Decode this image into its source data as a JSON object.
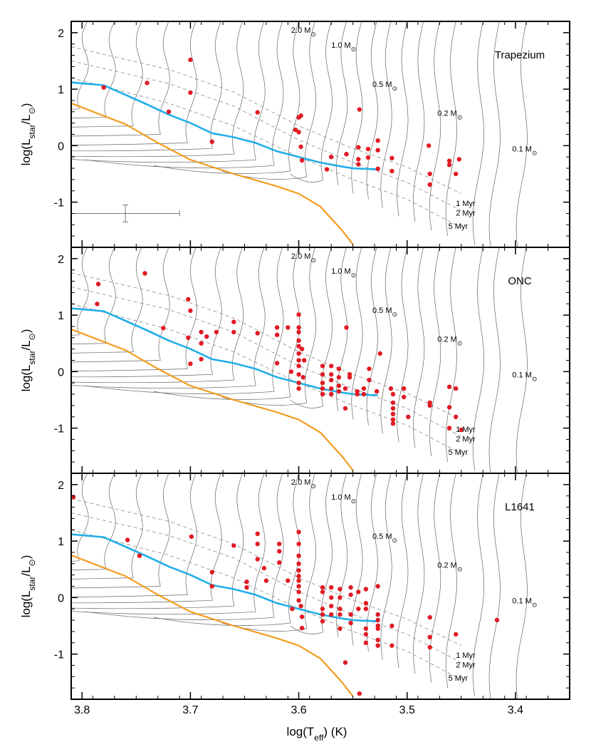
{
  "figure": {
    "xlabel": "log(T",
    "xlabel_sub": "eff",
    "xlabel_end": ") (K)",
    "ylabel_main": "log(L",
    "ylabel_sub1": "star",
    "ylabel_mid": "/L",
    "ylabel_end": ")"
  },
  "colors": {
    "birthline": "#22aee8",
    "zams": "#f39c1e",
    "stars": "#e01b24",
    "tracks": "#666666",
    "isochrones": "#888888",
    "axis": "#000000"
  },
  "axes": {
    "xlim": [
      3.81,
      3.35
    ],
    "ylim": [
      -1.8,
      2.2
    ],
    "xticks": [
      3.8,
      3.7,
      3.6,
      3.5,
      3.4
    ],
    "xtick_labels": [
      "3.8",
      "3.7",
      "3.6",
      "3.5",
      "3.4"
    ],
    "yticks": [
      2,
      1,
      0,
      -1
    ],
    "ytick_labels": [
      "2",
      "1",
      "0",
      "-1"
    ],
    "x_reversed": true
  },
  "track_labels": [
    {
      "text": "2.0 M",
      "x": 3.607,
      "y": 2.0
    },
    {
      "text": "1.0 M",
      "x": 3.57,
      "y": 1.73
    },
    {
      "text": "0.5 M",
      "x": 3.532,
      "y": 1.04
    },
    {
      "text": "0.2 M",
      "x": 3.472,
      "y": 0.53
    },
    {
      "text": "0.1 M",
      "x": 3.403,
      "y": -0.1
    }
  ],
  "isochrone_labels": [
    {
      "text": "1 Myr",
      "x": 3.455,
      "y": -1.07
    },
    {
      "text": "2 Myr",
      "x": 3.455,
      "y": -1.24
    },
    {
      "text": "5 Myr",
      "x": 3.462,
      "y": -1.47
    }
  ],
  "chart_data": [
    {
      "type": "scatter",
      "title": "Trapezium",
      "series": [
        {
          "name": "stars",
          "points": [
            [
              3.78,
              1.03
            ],
            [
              3.74,
              1.11
            ],
            [
              3.7,
              1.52
            ],
            [
              3.7,
              0.94
            ],
            [
              3.72,
              0.6
            ],
            [
              3.68,
              0.07
            ],
            [
              3.638,
              0.59
            ],
            [
              3.603,
              0.28
            ],
            [
              3.6,
              0.5
            ],
            [
              3.598,
              0.53
            ],
            [
              3.6,
              0.24
            ],
            [
              3.598,
              -0.02
            ],
            [
              3.597,
              -0.26
            ],
            [
              3.57,
              -0.2
            ],
            [
              3.556,
              -0.15
            ],
            [
              3.574,
              -0.42
            ],
            [
              3.544,
              0.64
            ],
            [
              3.545,
              -0.03
            ],
            [
              3.545,
              -0.24
            ],
            [
              3.545,
              -0.33
            ],
            [
              3.536,
              -0.06
            ],
            [
              3.536,
              -0.21
            ],
            [
              3.527,
              0.09
            ],
            [
              3.527,
              -0.08
            ],
            [
              3.527,
              -0.41
            ],
            [
              3.514,
              -0.22
            ],
            [
              3.514,
              -0.45
            ],
            [
              3.48,
              0.0
            ],
            [
              3.479,
              -0.5
            ],
            [
              3.479,
              -0.69
            ],
            [
              3.461,
              -0.27
            ],
            [
              3.461,
              -0.34
            ],
            [
              3.452,
              -0.24
            ],
            [
              3.455,
              -0.5
            ]
          ]
        }
      ],
      "error_bar": {
        "x": 3.76,
        "y": -1.2,
        "xerr": 0.05,
        "yerr": 0.15
      }
    },
    {
      "type": "scatter",
      "title": "ONC",
      "series": [
        {
          "name": "stars",
          "points": [
            [
              3.785,
              1.55
            ],
            [
              3.742,
              1.74
            ],
            [
              3.786,
              1.2
            ],
            [
              3.702,
              1.28
            ],
            [
              3.7,
              1.08
            ],
            [
              3.725,
              0.77
            ],
            [
              3.702,
              0.6
            ],
            [
              3.7,
              0.14
            ],
            [
              3.69,
              0.7
            ],
            [
              3.69,
              0.5
            ],
            [
              3.69,
              0.22
            ],
            [
              3.685,
              0.62
            ],
            [
              3.676,
              0.7
            ],
            [
              3.66,
              0.88
            ],
            [
              3.66,
              0.7
            ],
            [
              3.638,
              0.68
            ],
            [
              3.62,
              0.78
            ],
            [
              3.61,
              0.78
            ],
            [
              3.62,
              0.65
            ],
            [
              3.62,
              0.15
            ],
            [
              3.607,
              0.0
            ],
            [
              3.6,
              1.01
            ],
            [
              3.6,
              0.78
            ],
            [
              3.6,
              0.7
            ],
            [
              3.6,
              0.55
            ],
            [
              3.6,
              0.45
            ],
            [
              3.6,
              0.32
            ],
            [
              3.6,
              0.2
            ],
            [
              3.6,
              0.1
            ],
            [
              3.6,
              -0.05
            ],
            [
              3.6,
              -0.2
            ],
            [
              3.6,
              -0.3
            ],
            [
              3.597,
              0.4
            ],
            [
              3.595,
              0.2
            ],
            [
              3.596,
              -0.1
            ],
            [
              3.578,
              0.1
            ],
            [
              3.578,
              -0.05
            ],
            [
              3.578,
              -0.2
            ],
            [
              3.578,
              -0.3
            ],
            [
              3.578,
              -0.4
            ],
            [
              3.57,
              0.1
            ],
            [
              3.57,
              -0.05
            ],
            [
              3.57,
              -0.15
            ],
            [
              3.57,
              -0.3
            ],
            [
              3.57,
              -0.4
            ],
            [
              3.563,
              0.05
            ],
            [
              3.563,
              -0.1
            ],
            [
              3.563,
              -0.25
            ],
            [
              3.563,
              -0.35
            ],
            [
              3.557,
              -0.3
            ],
            [
              3.557,
              -0.65
            ],
            [
              3.556,
              0.78
            ],
            [
              3.553,
              -0.05
            ],
            [
              3.553,
              -0.1
            ],
            [
              3.546,
              -0.35
            ],
            [
              3.546,
              -0.4
            ],
            [
              3.54,
              -0.3
            ],
            [
              3.54,
              -0.4
            ],
            [
              3.535,
              0.05
            ],
            [
              3.535,
              -0.15
            ],
            [
              3.525,
              0.32
            ],
            [
              3.528,
              -0.35
            ],
            [
              3.515,
              -0.3
            ],
            [
              3.513,
              -0.4
            ],
            [
              3.513,
              -0.55
            ],
            [
              3.513,
              -0.65
            ],
            [
              3.513,
              -0.75
            ],
            [
              3.513,
              -0.85
            ],
            [
              3.513,
              -0.92
            ],
            [
              3.503,
              -0.3
            ],
            [
              3.503,
              -0.45
            ],
            [
              3.499,
              -0.8
            ],
            [
              3.479,
              -0.55
            ],
            [
              3.479,
              -0.6
            ],
            [
              3.461,
              -0.27
            ],
            [
              3.461,
              -0.63
            ],
            [
              3.461,
              -1.0
            ],
            [
              3.455,
              -0.3
            ],
            [
              3.455,
              -0.8
            ],
            [
              3.45,
              -1.03
            ]
          ]
        }
      ]
    },
    {
      "type": "scatter",
      "title": "L1641",
      "series": [
        {
          "name": "stars",
          "points": [
            [
              3.808,
              1.78
            ],
            [
              3.758,
              1.02
            ],
            [
              3.747,
              0.74
            ],
            [
              3.699,
              1.08
            ],
            [
              3.68,
              0.45
            ],
            [
              3.68,
              0.2
            ],
            [
              3.66,
              0.92
            ],
            [
              3.648,
              0.28
            ],
            [
              3.648,
              0.18
            ],
            [
              3.638,
              1.13
            ],
            [
              3.638,
              0.95
            ],
            [
              3.638,
              0.68
            ],
            [
              3.632,
              0.52
            ],
            [
              3.63,
              0.3
            ],
            [
              3.618,
              0.95
            ],
            [
              3.618,
              0.82
            ],
            [
              3.618,
              0.62
            ],
            [
              3.61,
              0.3
            ],
            [
              3.606,
              -0.2
            ],
            [
              3.6,
              1.16
            ],
            [
              3.6,
              0.95
            ],
            [
              3.6,
              0.74
            ],
            [
              3.6,
              0.6
            ],
            [
              3.6,
              0.48
            ],
            [
              3.6,
              0.38
            ],
            [
              3.6,
              0.3
            ],
            [
              3.6,
              0.2
            ],
            [
              3.6,
              0.1
            ],
            [
              3.6,
              -0.05
            ],
            [
              3.598,
              -0.15
            ],
            [
              3.597,
              -0.54
            ],
            [
              3.597,
              -0.34
            ],
            [
              3.578,
              0.18
            ],
            [
              3.578,
              0.1
            ],
            [
              3.578,
              -0.2
            ],
            [
              3.578,
              -0.3
            ],
            [
              3.578,
              -0.42
            ],
            [
              3.57,
              0.18
            ],
            [
              3.57,
              0.0
            ],
            [
              3.57,
              -0.15
            ],
            [
              3.57,
              -0.3
            ],
            [
              3.562,
              0.15
            ],
            [
              3.562,
              0.0
            ],
            [
              3.562,
              -0.2
            ],
            [
              3.562,
              -0.3
            ],
            [
              3.562,
              -0.55
            ],
            [
              3.557,
              -1.15
            ],
            [
              3.552,
              0.18
            ],
            [
              3.552,
              0.05
            ],
            [
              3.552,
              -0.3
            ],
            [
              3.552,
              -0.45
            ],
            [
              3.545,
              0.1
            ],
            [
              3.545,
              -0.2
            ],
            [
              3.544,
              -1.7
            ],
            [
              3.538,
              0.15
            ],
            [
              3.538,
              -0.1
            ],
            [
              3.538,
              -0.2
            ],
            [
              3.538,
              -0.55
            ],
            [
              3.538,
              -0.65
            ],
            [
              3.538,
              -0.8
            ],
            [
              3.527,
              0.2
            ],
            [
              3.527,
              -0.3
            ],
            [
              3.527,
              -0.4
            ],
            [
              3.527,
              -0.5
            ],
            [
              3.527,
              -0.55
            ],
            [
              3.527,
              -0.75
            ],
            [
              3.527,
              -0.85
            ],
            [
              3.514,
              -0.5
            ],
            [
              3.514,
              -0.85
            ],
            [
              3.479,
              -0.35
            ],
            [
              3.479,
              -0.7
            ],
            [
              3.479,
              -0.88
            ],
            [
              3.455,
              -0.65
            ],
            [
              3.417,
              -0.4
            ]
          ]
        }
      ]
    }
  ],
  "model_lines": {
    "birthline": [
      [
        3.81,
        1.12
      ],
      [
        3.78,
        1.07
      ],
      [
        3.76,
        0.9
      ],
      [
        3.74,
        0.73
      ],
      [
        3.72,
        0.55
      ],
      [
        3.7,
        0.4
      ],
      [
        3.68,
        0.22
      ],
      [
        3.66,
        0.15
      ],
      [
        3.64,
        0.05
      ],
      [
        3.62,
        -0.1
      ],
      [
        3.6,
        -0.2
      ],
      [
        3.58,
        -0.3
      ],
      [
        3.56,
        -0.37
      ],
      [
        3.55,
        -0.4
      ],
      [
        3.54,
        -0.41
      ],
      [
        3.527,
        -0.42
      ]
    ],
    "zams": [
      [
        3.81,
        0.75
      ],
      [
        3.76,
        0.38
      ],
      [
        3.73,
        0.05
      ],
      [
        3.7,
        -0.25
      ],
      [
        3.66,
        -0.5
      ],
      [
        3.62,
        -0.72
      ],
      [
        3.6,
        -0.85
      ],
      [
        3.58,
        -1.08
      ],
      [
        3.56,
        -1.5
      ],
      [
        3.55,
        -1.75
      ]
    ]
  }
}
